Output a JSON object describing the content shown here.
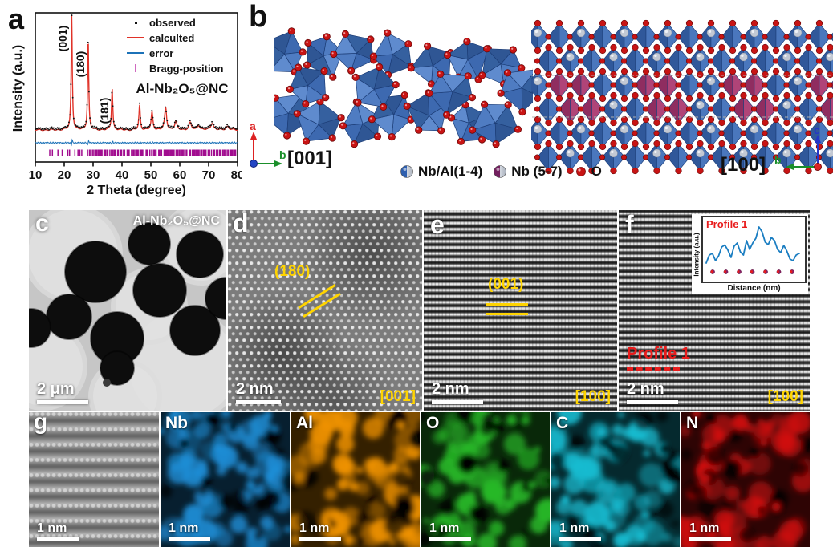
{
  "figure_title": "Al-Nb2O5@NC characterization figure",
  "colors": {
    "xrd_calculated": "#e03228",
    "xrd_error": "#1c72b8",
    "xrd_observed": "#101010",
    "bragg": "#a10d8f",
    "annotation_yellow": "#ffd400",
    "profile_line": "#1b7ec2",
    "profile_red": "#e81c1c",
    "crystal_blue": "#4a77bd",
    "crystal_magenta": "#a23a6e",
    "oxygen_red": "#c81414",
    "cation_silver": "#c3c9d4"
  },
  "panel_a": {
    "label": "a",
    "ylabel": "Intensity (a.u.)",
    "xlabel": "2 Theta (degree)",
    "legend": [
      {
        "name": "observed"
      },
      {
        "name": "calculted"
      },
      {
        "name": "error"
      },
      {
        "name": "Bragg-position"
      }
    ],
    "sample_label": "Al-Nb₂O₅@NC"
  },
  "panel_b": {
    "label": "b",
    "left_view_label": "[001]",
    "right_view_label": "[100]",
    "axes_left": {
      "vertical": "a",
      "horizontal": "b"
    },
    "axes_right": {
      "vertical": "c",
      "horizontal": "b"
    },
    "legend": [
      {
        "name": "Nb/Al(1-4)",
        "marker": "blue-silver-sphere"
      },
      {
        "name": "Nb (5-7)",
        "marker": "purple-silver-sphere"
      },
      {
        "name": "O",
        "marker": "red-sphere"
      }
    ]
  },
  "panel_c": {
    "label": "c",
    "sample_label": "Al-Nb₂O₅@NC",
    "scale_bar": "2 μm"
  },
  "panel_d": {
    "label": "d",
    "plane": "(180)",
    "scale_bar": "2 nm",
    "zone_axis": "[001]"
  },
  "panel_e": {
    "label": "e",
    "plane": "(001)",
    "scale_bar": "2 nm",
    "zone_axis": "[100]"
  },
  "panel_f": {
    "label": "f",
    "profile_label": "Profile 1",
    "scale_bar": "2 nm",
    "zone_axis": "[100]",
    "inset": {
      "title": "Profile 1",
      "ylabel": "Intensity (a.u.)",
      "xlabel": "Distance (nm)"
    }
  },
  "panel_g": {
    "label": "g",
    "scale_bar": "1 nm",
    "maps": [
      {
        "element": "Nb",
        "color": "#1e8fd8"
      },
      {
        "element": "Al",
        "color": "#ef9200"
      },
      {
        "element": "O",
        "color": "#28b828"
      },
      {
        "element": "C",
        "color": "#17bcd1"
      },
      {
        "element": "N",
        "color": "#d01010"
      }
    ]
  },
  "chart_data": [
    {
      "id": "xrd-rietveld",
      "type": "line",
      "title": "",
      "xlabel": "2 Theta (degree)",
      "ylabel": "Intensity (a.u.)",
      "xlim": [
        10,
        80
      ],
      "x_ticks": [
        10,
        20,
        30,
        40,
        50,
        60,
        70,
        80
      ],
      "legend_position": "top-right",
      "grid": false,
      "series_names": [
        "observed",
        "calculted",
        "error",
        "Bragg-position"
      ],
      "sample_label": "Al-Nb₂O₅@NC",
      "peaks": [
        {
          "two_theta": 22.6,
          "rel_intensity": 100,
          "hkl": "(001)",
          "width": 0.45
        },
        {
          "two_theta": 28.3,
          "rel_intensity": 78,
          "hkl": "(180)",
          "width": 0.45
        },
        {
          "two_theta": 36.6,
          "rel_intensity": 36,
          "hkl": "(181)",
          "width": 0.5
        },
        {
          "two_theta": 46.1,
          "rel_intensity": 21,
          "width": 0.55
        },
        {
          "two_theta": 50.4,
          "rel_intensity": 15,
          "width": 0.7
        },
        {
          "two_theta": 55.1,
          "rel_intensity": 19,
          "width": 0.8
        },
        {
          "two_theta": 58.6,
          "rel_intensity": 7,
          "width": 0.9
        },
        {
          "two_theta": 63.6,
          "rel_intensity": 6,
          "width": 1.0
        },
        {
          "two_theta": 66.5,
          "rel_intensity": 4,
          "width": 1.0
        },
        {
          "two_theta": 71.2,
          "rel_intensity": 6,
          "width": 1.1
        },
        {
          "two_theta": 76.5,
          "rel_intensity": 3,
          "width": 1.2
        }
      ]
    },
    {
      "id": "profile-1",
      "type": "line",
      "title": "Profile 1",
      "xlabel": "Distance (nm)",
      "ylabel": "Intensity (a.u.)",
      "normalized_intensity": [
        0.1,
        0.3,
        0.34,
        0.16,
        0.28,
        0.5,
        0.55,
        0.42,
        0.24,
        0.52,
        0.6,
        0.38,
        0.3,
        0.66,
        0.44,
        0.6,
        0.72,
        1.0,
        0.88,
        0.62,
        0.56,
        0.74,
        0.66,
        0.44,
        0.36,
        0.54,
        0.4,
        0.2,
        0.16,
        0.3,
        0.34
      ],
      "atom_marker_count": 7
    }
  ]
}
